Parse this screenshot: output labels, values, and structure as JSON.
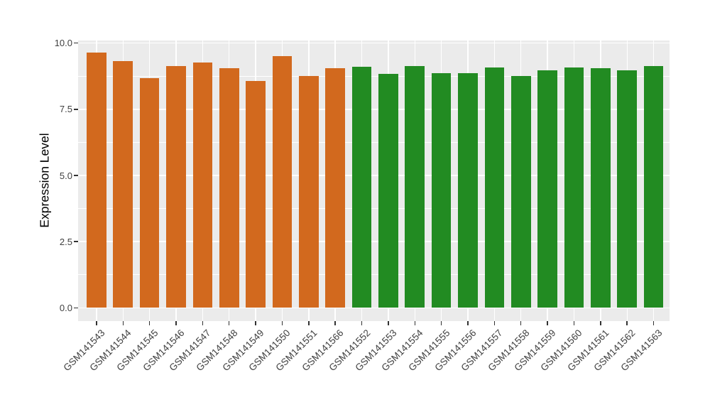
{
  "chart_data": {
    "type": "bar",
    "title": "",
    "xlabel": "",
    "ylabel": "Expression Level",
    "legend": "none",
    "grid": true,
    "ylim": [
      -0.5,
      10.1
    ],
    "y_ticks": [
      {
        "value": 0,
        "label": "0.0"
      },
      {
        "value": 2.5,
        "label": "2.5"
      },
      {
        "value": 5,
        "label": "5.0"
      },
      {
        "value": 7.5,
        "label": "7.5"
      },
      {
        "value": 10,
        "label": "10.0"
      }
    ],
    "y_minor_ticks": [
      1.25,
      3.75,
      6.25,
      8.75
    ],
    "bars": [
      {
        "label": "GSM141543",
        "value": 9.63,
        "group": "group1"
      },
      {
        "label": "GSM141544",
        "value": 9.33,
        "group": "group1"
      },
      {
        "label": "GSM141545",
        "value": 8.68,
        "group": "group1"
      },
      {
        "label": "GSM141546",
        "value": 9.14,
        "group": "group1"
      },
      {
        "label": "GSM141547",
        "value": 9.27,
        "group": "group1"
      },
      {
        "label": "GSM141548",
        "value": 9.04,
        "group": "group1"
      },
      {
        "label": "GSM141549",
        "value": 8.58,
        "group": "group1"
      },
      {
        "label": "GSM141550",
        "value": 9.5,
        "group": "group1"
      },
      {
        "label": "GSM141551",
        "value": 8.76,
        "group": "group1"
      },
      {
        "label": "GSM141566",
        "value": 9.04,
        "group": "group1"
      },
      {
        "label": "GSM141552",
        "value": 9.1,
        "group": "group2"
      },
      {
        "label": "GSM141553",
        "value": 8.85,
        "group": "group2"
      },
      {
        "label": "GSM141554",
        "value": 9.14,
        "group": "group2"
      },
      {
        "label": "GSM141555",
        "value": 8.87,
        "group": "group2"
      },
      {
        "label": "GSM141556",
        "value": 8.87,
        "group": "group2"
      },
      {
        "label": "GSM141557",
        "value": 9.07,
        "group": "group2"
      },
      {
        "label": "GSM141558",
        "value": 8.77,
        "group": "group2"
      },
      {
        "label": "GSM141559",
        "value": 8.97,
        "group": "group2"
      },
      {
        "label": "GSM141560",
        "value": 9.07,
        "group": "group2"
      },
      {
        "label": "GSM141561",
        "value": 9.05,
        "group": "group2"
      },
      {
        "label": "GSM141562",
        "value": 8.98,
        "group": "group2"
      },
      {
        "label": "GSM141563",
        "value": 9.13,
        "group": "group2"
      }
    ],
    "group_colors": {
      "group1": "#D2691E",
      "group2": "#228B22"
    },
    "panel_background": "#EBEBEB",
    "gridline_color": "#FFFFFF",
    "axis_text_color": "#404040"
  }
}
